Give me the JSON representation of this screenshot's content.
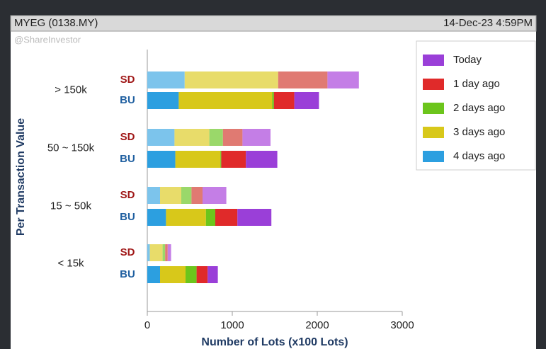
{
  "chart_data": {
    "type": "stacked-bar-horizontal",
    "header": "MYEG (0138.MY)",
    "timestamp": "14-Dec-23 4:59PM",
    "watermark": "@ShareInvestor",
    "ylabel": "Per Transaction Value",
    "xlabel": "Number of Lots (x100 Lots)",
    "categories": [
      "> 150k",
      "50 ~ 150k",
      "15 ~ 50k",
      "< 15k"
    ],
    "groups": [
      "SD",
      "BU"
    ],
    "series": [
      {
        "name": "Today",
        "color": "#9a3fd8",
        "sd_color": "#c47ee6",
        "values": [
          [
            370,
            290
          ],
          [
            330,
            370
          ],
          [
            280,
            400
          ],
          [
            40,
            120
          ]
        ]
      },
      {
        "name": "1 day ago",
        "color": "#e02a2a",
        "sd_color": "#e07a72",
        "values": [
          [
            580,
            240
          ],
          [
            230,
            290
          ],
          [
            130,
            260
          ],
          [
            30,
            130
          ]
        ]
      },
      {
        "name": "2 days ago",
        "color": "#6cc51c",
        "sd_color": "#9ad86a",
        "values": [
          [
            0,
            20
          ],
          [
            160,
            10
          ],
          [
            120,
            110
          ],
          [
            30,
            130
          ]
        ]
      },
      {
        "name": "3 days ago",
        "color": "#d8c81a",
        "sd_color": "#e8dc6a",
        "values": [
          [
            1100,
            1100
          ],
          [
            410,
            530
          ],
          [
            250,
            470
          ],
          [
            150,
            300
          ]
        ]
      },
      {
        "name": "4 days ago",
        "color": "#2c9fe0",
        "sd_color": "#7cc4ec",
        "values": [
          [
            440,
            370
          ],
          [
            320,
            330
          ],
          [
            150,
            220
          ],
          [
            30,
            150
          ]
        ]
      }
    ],
    "xlim": [
      0,
      3000
    ],
    "xticks": [
      0,
      1000,
      2000,
      3000
    ],
    "legend": "top-right"
  }
}
